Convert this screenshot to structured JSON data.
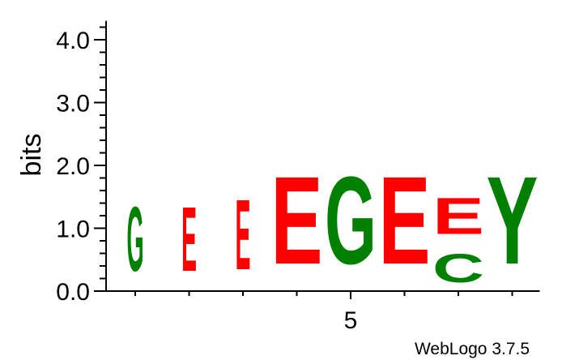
{
  "chart_data": {
    "type": "sequence-logo",
    "ylabel": "bits",
    "ylim": [
      0,
      4.3
    ],
    "yticks": [
      "0.0",
      "1.0",
      "2.0",
      "3.0",
      "4.0"
    ],
    "ytick_values": [
      0,
      1,
      2,
      3,
      4
    ],
    "xtick_label": "5",
    "xtick_position": 5,
    "positions": [
      {
        "position": 1,
        "letters": [
          {
            "letter": "G",
            "bits": 1.63,
            "color": "#008000"
          }
        ]
      },
      {
        "position": 2,
        "letters": [
          {
            "letter": "E",
            "bits": 1.63,
            "color": "#ff0000"
          }
        ]
      },
      {
        "position": 3,
        "letters": [
          {
            "letter": "E",
            "bits": 1.79,
            "color": "#ff0000"
          }
        ]
      },
      {
        "position": 4,
        "letters": [
          {
            "letter": "E",
            "bits": 2.23,
            "color": "#ff0000"
          }
        ]
      },
      {
        "position": 5,
        "letters": [
          {
            "letter": "G",
            "bits": 2.23,
            "color": "#008000"
          }
        ]
      },
      {
        "position": 6,
        "letters": [
          {
            "letter": "E",
            "bits": 2.23,
            "color": "#ff0000"
          }
        ]
      },
      {
        "position": 7,
        "letters": [
          {
            "letter": "C",
            "bits": 0.73,
            "color": "#008000"
          },
          {
            "letter": "E",
            "bits": 0.93,
            "color": "#ff0000"
          }
        ]
      },
      {
        "position": 8,
        "letters": [
          {
            "letter": "Y",
            "bits": 2.23,
            "color": "#008000"
          }
        ]
      }
    ]
  },
  "credit": "WebLogo 3.7.5"
}
